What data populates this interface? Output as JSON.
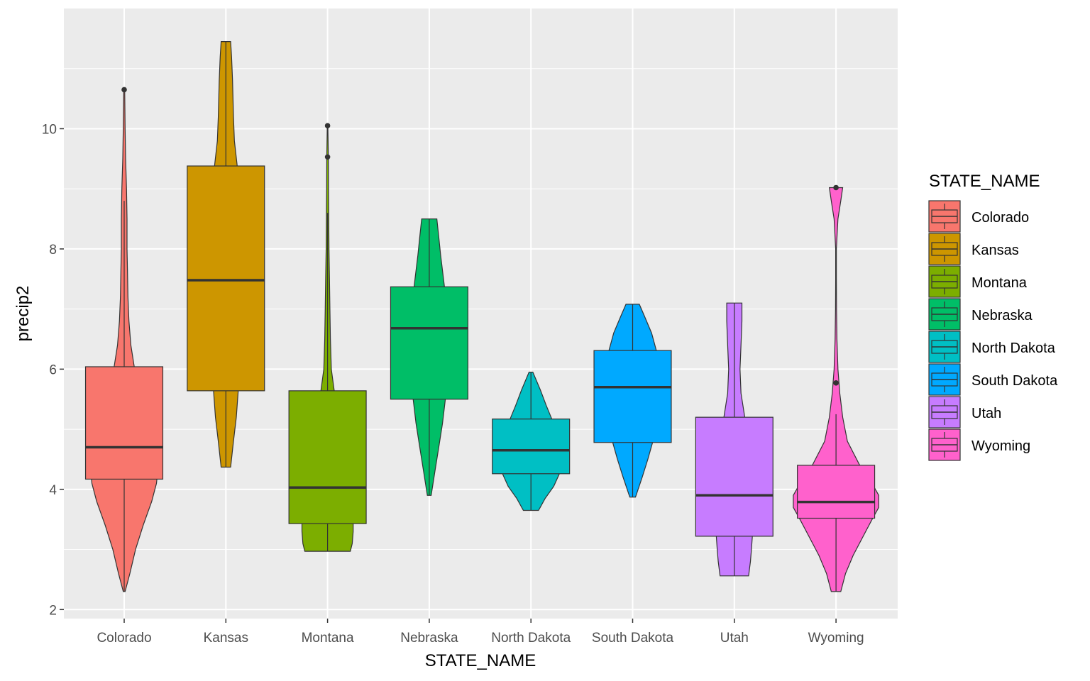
{
  "chart_data": {
    "type": "violin+boxplot",
    "title": "",
    "xlabel": "STATE_NAME",
    "ylabel": "precip2",
    "ylim": [
      1.85,
      12.0
    ],
    "yticks": [
      2,
      4,
      6,
      8,
      10
    ],
    "grid": true,
    "legend": {
      "title": "STATE_NAME",
      "position": "right"
    },
    "categories": [
      "Colorado",
      "Kansas",
      "Montana",
      "Nebraska",
      "North Dakota",
      "South Dakota",
      "Utah",
      "Wyoming"
    ],
    "series": [
      {
        "name": "Colorado",
        "color": "#F8766D",
        "box": {
          "min": 2.3,
          "q1": 4.17,
          "median": 4.7,
          "q3": 6.04,
          "max": 8.8
        },
        "outliers": [
          10.65
        ],
        "violin": [
          [
            2.3,
            0.01
          ],
          [
            2.6,
            0.06
          ],
          [
            3.0,
            0.12
          ],
          [
            3.4,
            0.2
          ],
          [
            3.8,
            0.29
          ],
          [
            4.1,
            0.34
          ],
          [
            4.4,
            0.36
          ],
          [
            4.8,
            0.33
          ],
          [
            5.2,
            0.26
          ],
          [
            5.6,
            0.17
          ],
          [
            6.0,
            0.11
          ],
          [
            6.4,
            0.07
          ],
          [
            6.8,
            0.05
          ],
          [
            7.2,
            0.04
          ],
          [
            7.6,
            0.035
          ],
          [
            8.0,
            0.03
          ],
          [
            8.5,
            0.03
          ],
          [
            9.0,
            0.025
          ],
          [
            9.5,
            0.015
          ],
          [
            10.0,
            0.01
          ],
          [
            10.65,
            0.005
          ]
        ]
      },
      {
        "name": "Kansas",
        "color": "#CD9600",
        "box": {
          "min": 4.37,
          "q1": 5.64,
          "median": 7.48,
          "q3": 9.38,
          "max": 11.45
        },
        "outliers": [],
        "violin": [
          [
            4.37,
            0.05
          ],
          [
            4.8,
            0.08
          ],
          [
            5.2,
            0.11
          ],
          [
            5.64,
            0.13
          ],
          [
            6.0,
            0.14
          ],
          [
            6.5,
            0.16
          ],
          [
            7.0,
            0.17
          ],
          [
            7.5,
            0.17
          ],
          [
            8.0,
            0.16
          ],
          [
            8.5,
            0.15
          ],
          [
            9.0,
            0.14
          ],
          [
            9.38,
            0.12
          ],
          [
            9.8,
            0.09
          ],
          [
            10.2,
            0.08
          ],
          [
            10.8,
            0.07
          ],
          [
            11.2,
            0.06
          ],
          [
            11.45,
            0.05
          ]
        ]
      },
      {
        "name": "Montana",
        "color": "#7CAE00",
        "box": {
          "min": 2.97,
          "q1": 3.43,
          "median": 4.03,
          "q3": 5.64,
          "max": 8.6
        },
        "outliers": [
          10.05,
          9.53
        ],
        "violin": [
          [
            2.97,
            0.24
          ],
          [
            3.1,
            0.26
          ],
          [
            3.3,
            0.27
          ],
          [
            3.43,
            0.27
          ],
          [
            3.7,
            0.26
          ],
          [
            4.0,
            0.24
          ],
          [
            4.4,
            0.21
          ],
          [
            4.8,
            0.17
          ],
          [
            5.2,
            0.12
          ],
          [
            5.64,
            0.07
          ],
          [
            6.0,
            0.04
          ],
          [
            6.5,
            0.03
          ],
          [
            7.0,
            0.025
          ],
          [
            7.5,
            0.02
          ],
          [
            8.0,
            0.015
          ],
          [
            8.6,
            0.012
          ],
          [
            9.0,
            0.01
          ],
          [
            9.53,
            0.008
          ],
          [
            10.05,
            0.003
          ]
        ]
      },
      {
        "name": "Nebraska",
        "color": "#00BE67",
        "box": {
          "min": 3.9,
          "q1": 5.5,
          "median": 6.68,
          "q3": 7.37,
          "max": 8.5
        },
        "outliers": [],
        "violin": [
          [
            3.9,
            0.02
          ],
          [
            4.3,
            0.06
          ],
          [
            4.7,
            0.1
          ],
          [
            5.1,
            0.14
          ],
          [
            5.5,
            0.17
          ],
          [
            5.9,
            0.19
          ],
          [
            6.3,
            0.2
          ],
          [
            6.7,
            0.2
          ],
          [
            7.1,
            0.18
          ],
          [
            7.5,
            0.15
          ],
          [
            7.9,
            0.12
          ],
          [
            8.2,
            0.1
          ],
          [
            8.5,
            0.08
          ]
        ]
      },
      {
        "name": "North Dakota",
        "color": "#00BFC4",
        "box": {
          "min": 3.65,
          "q1": 4.26,
          "median": 4.65,
          "q3": 5.17,
          "max": 5.95
        },
        "outliers": [],
        "violin": [
          [
            3.65,
            0.08
          ],
          [
            3.85,
            0.15
          ],
          [
            4.05,
            0.24
          ],
          [
            4.26,
            0.3
          ],
          [
            4.45,
            0.32
          ],
          [
            4.65,
            0.31
          ],
          [
            4.9,
            0.28
          ],
          [
            5.17,
            0.22
          ],
          [
            5.4,
            0.16
          ],
          [
            5.65,
            0.1
          ],
          [
            5.95,
            0.02
          ]
        ]
      },
      {
        "name": "South Dakota",
        "color": "#00A9FF",
        "box": {
          "min": 3.87,
          "q1": 4.78,
          "median": 5.7,
          "q3": 6.31,
          "max": 7.08
        },
        "outliers": [],
        "violin": [
          [
            3.87,
            0.03
          ],
          [
            4.2,
            0.1
          ],
          [
            4.5,
            0.16
          ],
          [
            4.78,
            0.21
          ],
          [
            5.2,
            0.26
          ],
          [
            5.7,
            0.28
          ],
          [
            6.1,
            0.27
          ],
          [
            6.31,
            0.25
          ],
          [
            6.6,
            0.2
          ],
          [
            6.9,
            0.12
          ],
          [
            7.08,
            0.07
          ]
        ]
      },
      {
        "name": "Utah",
        "color": "#C77CFF",
        "box": {
          "min": 2.56,
          "q1": 3.22,
          "median": 3.9,
          "q3": 5.2,
          "max": 7.1
        },
        "outliers": [],
        "violin": [
          [
            2.56,
            0.15
          ],
          [
            2.8,
            0.17
          ],
          [
            3.0,
            0.18
          ],
          [
            3.22,
            0.19
          ],
          [
            3.5,
            0.2
          ],
          [
            3.9,
            0.2
          ],
          [
            4.3,
            0.18
          ],
          [
            4.8,
            0.15
          ],
          [
            5.2,
            0.11
          ],
          [
            5.6,
            0.07
          ],
          [
            6.0,
            0.06
          ],
          [
            6.4,
            0.07
          ],
          [
            6.8,
            0.08
          ],
          [
            7.1,
            0.08
          ]
        ]
      },
      {
        "name": "Wyoming",
        "color": "#FF61CC",
        "box": {
          "min": 2.3,
          "q1": 3.52,
          "median": 3.79,
          "q3": 4.4,
          "max": 5.25
        },
        "outliers": [
          9.02,
          5.77
        ],
        "violin": [
          [
            2.3,
            0.05
          ],
          [
            2.6,
            0.1
          ],
          [
            2.9,
            0.18
          ],
          [
            3.2,
            0.28
          ],
          [
            3.5,
            0.38
          ],
          [
            3.7,
            0.45
          ],
          [
            3.9,
            0.45
          ],
          [
            4.1,
            0.38
          ],
          [
            4.4,
            0.25
          ],
          [
            4.8,
            0.12
          ],
          [
            5.2,
            0.07
          ],
          [
            5.6,
            0.04
          ],
          [
            6.0,
            0.02
          ],
          [
            6.5,
            0.01
          ],
          [
            7.0,
            0.005
          ],
          [
            7.5,
            0.004
          ],
          [
            8.0,
            0.004
          ],
          [
            8.5,
            0.02
          ],
          [
            8.8,
            0.05
          ],
          [
            9.02,
            0.07
          ]
        ]
      }
    ]
  }
}
